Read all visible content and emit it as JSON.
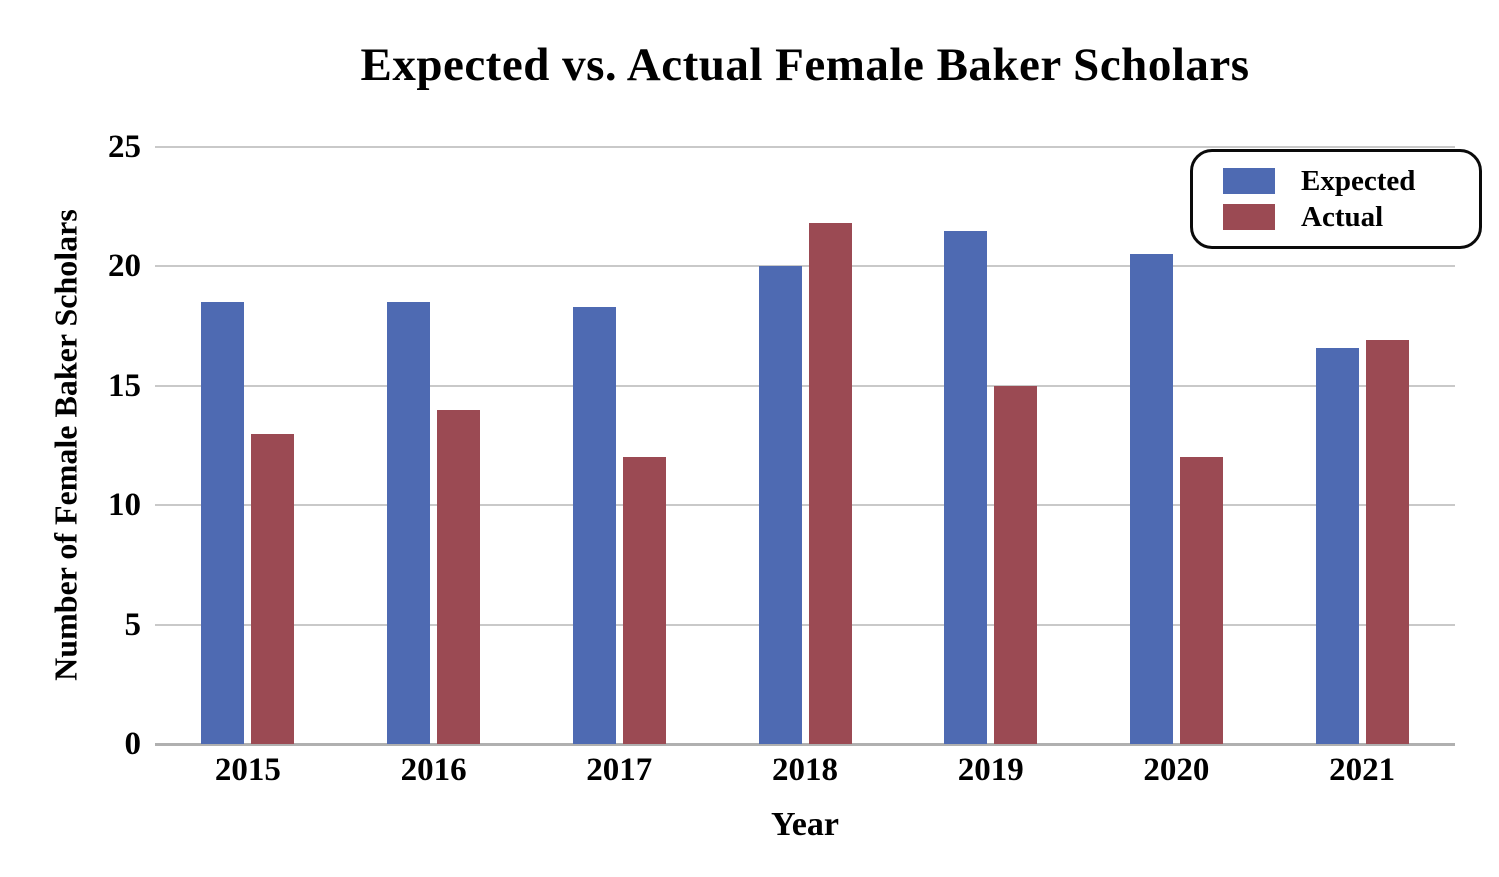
{
  "chart_data": {
    "type": "bar",
    "title": "Expected vs. Actual Female Baker Scholars",
    "xlabel": "Year",
    "ylabel": "Number of Female Baker Scholars",
    "categories": [
      "2015",
      "2016",
      "2017",
      "2018",
      "2019",
      "2020",
      "2021"
    ],
    "series": [
      {
        "name": "Expected",
        "color": "#4E6AB2",
        "values": [
          18.5,
          18.5,
          18.3,
          20,
          21.5,
          20.5,
          16.6
        ]
      },
      {
        "name": "Actual",
        "color": "#9B4A53",
        "values": [
          13,
          14,
          12,
          21.8,
          15,
          12,
          16.9
        ]
      }
    ],
    "ylim": [
      0,
      25
    ],
    "ytick_step": 5,
    "ytick_labels": [
      "0",
      "5",
      "10",
      "15",
      "20",
      "25"
    ],
    "grid": "horizontal",
    "legend_position": "top-right",
    "colors": {
      "gridline": "#c9c9c9",
      "baseline": "#b0b0b0",
      "text": "#000000",
      "legend_border": "#0a0a0a"
    }
  }
}
